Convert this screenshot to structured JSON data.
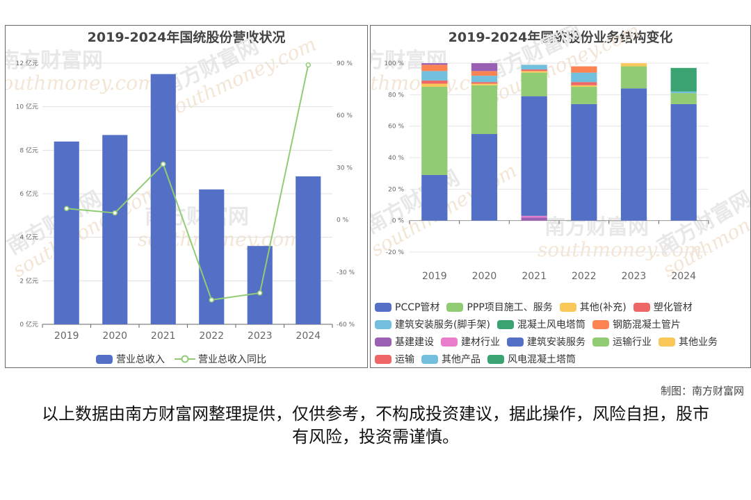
{
  "watermark": {
    "cn": "南方财富网",
    "en": "southmoney.com"
  },
  "left_chart_title": "2019-2024年国统股份营收状况",
  "right_chart_title": "2019-2024年国统股份业务结构变化",
  "legend_left": {
    "bar": "营业总收入",
    "line": "营业总收入同比"
  },
  "footer": {
    "credit": "制图：南方财富网",
    "disclaimer": "以上数据由南方财富网整理提供，仅供参考，不构成投资建议，据此操作，风险自担，股市有风险，投资需谨慎。"
  },
  "chart_data": [
    {
      "type": "bar",
      "title": "2019-2024年国统股份营收状况",
      "categories": [
        "2019",
        "2020",
        "2021",
        "2022",
        "2023",
        "2024"
      ],
      "series": [
        {
          "name": "营业总收入",
          "type": "bar",
          "axis": "left",
          "values": [
            8.4,
            8.7,
            11.5,
            6.2,
            3.6,
            6.8
          ],
          "color": "#5470c6"
        },
        {
          "name": "营业总收入同比",
          "type": "line",
          "axis": "right",
          "values": [
            6.5,
            4,
            32,
            -46,
            -42,
            89
          ],
          "color": "#91cc75"
        }
      ],
      "y_left": {
        "min": 0,
        "max": 12,
        "step": 2,
        "ticks": [
          "0 亿元",
          "2 亿元",
          "4 亿元",
          "6 亿元",
          "8 亿元",
          "10 亿元",
          "12 亿元"
        ]
      },
      "y_right": {
        "min": -60,
        "max": 90,
        "step": 30,
        "ticks": [
          "-60 %",
          "-30 %",
          "0 %",
          "30 %",
          "60 %",
          "90 %"
        ]
      },
      "legend": "bottom"
    },
    {
      "type": "bar",
      "stacked": true,
      "title": "2019-2024年国统股份业务结构变化",
      "categories": [
        "2019",
        "2020",
        "2021",
        "2022",
        "2023",
        "2024"
      ],
      "y": {
        "min": -20,
        "max": 100,
        "step": 20,
        "ticks": [
          "-20 %",
          "0 %",
          "20 %",
          "40 %",
          "60 %",
          "80 %",
          "100 %"
        ]
      },
      "series": [
        {
          "name": "PCCP管材",
          "color": "#5470c6",
          "values": [
            29,
            55,
            0,
            0,
            0,
            0
          ]
        },
        {
          "name": "PPP项目施工、服务",
          "color": "#91cc75",
          "values": [
            56,
            31,
            0,
            0,
            0,
            0
          ]
        },
        {
          "name": "其他(补充)",
          "color": "#fac858",
          "values": [
            2,
            1,
            0,
            0,
            0,
            0
          ]
        },
        {
          "name": "塑化管材",
          "color": "#ee6666",
          "values": [
            2,
            1,
            0,
            0,
            0,
            0
          ]
        },
        {
          "name": "建筑安装服务(脚手架)",
          "color": "#73c0de",
          "values": [
            6,
            4,
            0,
            0,
            0,
            0
          ]
        },
        {
          "name": "混凝土风电塔筒",
          "color": "#3ba272",
          "values": [
            0,
            0,
            0,
            0,
            0,
            0
          ]
        },
        {
          "name": "钢筋混凝土管片",
          "color": "#fc8452",
          "values": [
            4,
            3,
            0,
            0,
            0,
            0
          ]
        },
        {
          "name": "基建建设",
          "color": "#9a60b4",
          "values": [
            1,
            5,
            2,
            0,
            0,
            0
          ]
        },
        {
          "name": "建材行业",
          "color": "#ea7ccc",
          "values": [
            0,
            0,
            1,
            0,
            0,
            0
          ]
        },
        {
          "name": "建筑安装服务",
          "color": "#5470c6",
          "values": [
            0,
            0,
            76,
            74,
            84,
            74
          ]
        },
        {
          "name": "运输行业",
          "color": "#91cc75",
          "values": [
            0,
            0,
            15,
            11,
            14,
            7
          ]
        },
        {
          "name": "其他业务",
          "color": "#fac858",
          "values": [
            0,
            0,
            1,
            1,
            2,
            0
          ]
        },
        {
          "name": "运输",
          "color": "#ee6666",
          "values": [
            0,
            0,
            1,
            2,
            0,
            0
          ]
        },
        {
          "name": "其他产品",
          "color": "#73c0de",
          "values": [
            0,
            0,
            3,
            6,
            0,
            1
          ]
        },
        {
          "name": "风电混凝土塔筒",
          "color": "#3ba272",
          "values": [
            0,
            0,
            0,
            0,
            0,
            15
          ]
        }
      ],
      "series_extra": {
        "其他业务_tops": [
          0,
          0,
          0,
          4,
          0,
          0
        ]
      },
      "legend": "bottom"
    }
  ]
}
